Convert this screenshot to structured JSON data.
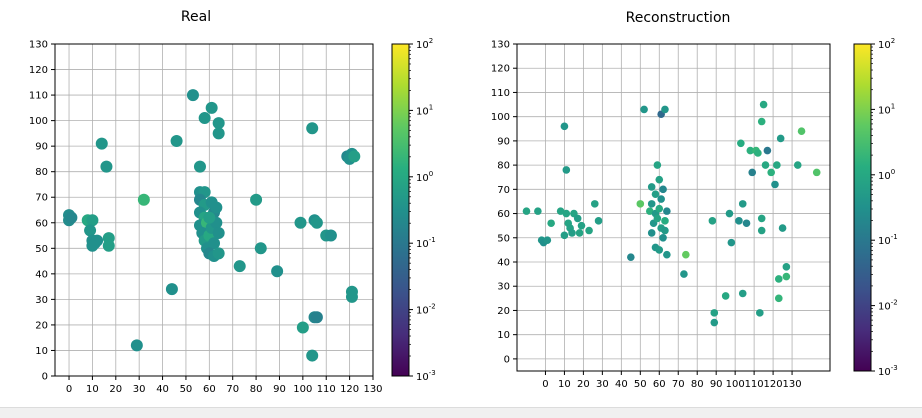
{
  "chart_data": [
    {
      "type": "scatter",
      "title": "Real",
      "xlim": [
        -6,
        130
      ],
      "ylim": [
        0,
        130
      ],
      "xticks": [
        "0",
        "10",
        "20",
        "30",
        "40",
        "50",
        "60",
        "70",
        "80",
        "90",
        "100",
        "110",
        "120",
        "130"
      ],
      "yticks": [
        "0",
        "10",
        "20",
        "30",
        "40",
        "50",
        "60",
        "70",
        "80",
        "90",
        "100",
        "110",
        "120",
        "130"
      ],
      "grid": true,
      "colorbar": {
        "scale": "log",
        "range": [
          0.001,
          100
        ],
        "ticks": [
          "10^-3",
          "10^-2",
          "10^-1",
          "10^0",
          "10^1",
          "10^2"
        ],
        "colormap": "viridis"
      },
      "points": [
        {
          "x": 0,
          "y": 63,
          "c": 0.25
        },
        {
          "x": 0,
          "y": 61,
          "c": 0.25
        },
        {
          "x": 1,
          "y": 62,
          "c": 0.2
        },
        {
          "x": 8,
          "y": 61,
          "c": 1
        },
        {
          "x": 10,
          "y": 61,
          "c": 0.6
        },
        {
          "x": 9,
          "y": 57,
          "c": 0.4
        },
        {
          "x": 10,
          "y": 53,
          "c": 0.3
        },
        {
          "x": 11,
          "y": 52,
          "c": 0.25
        },
        {
          "x": 12,
          "y": 53,
          "c": 0.3
        },
        {
          "x": 10,
          "y": 51,
          "c": 0.3
        },
        {
          "x": 14,
          "y": 91,
          "c": 0.4
        },
        {
          "x": 16,
          "y": 82,
          "c": 0.4
        },
        {
          "x": 17,
          "y": 54,
          "c": 0.6
        },
        {
          "x": 17,
          "y": 51,
          "c": 0.6
        },
        {
          "x": 29,
          "y": 12,
          "c": 0.3
        },
        {
          "x": 32,
          "y": 69,
          "c": 2
        },
        {
          "x": 44,
          "y": 34,
          "c": 0.3
        },
        {
          "x": 46,
          "y": 92,
          "c": 0.4
        },
        {
          "x": 53,
          "y": 110,
          "c": 0.3
        },
        {
          "x": 56,
          "y": 82,
          "c": 0.4
        },
        {
          "x": 58,
          "y": 101,
          "c": 0.4
        },
        {
          "x": 61,
          "y": 105,
          "c": 0.4
        },
        {
          "x": 64,
          "y": 99,
          "c": 0.4
        },
        {
          "x": 64,
          "y": 95,
          "c": 0.4
        },
        {
          "x": 56,
          "y": 72,
          "c": 0.3
        },
        {
          "x": 58,
          "y": 72,
          "c": 0.4
        },
        {
          "x": 56,
          "y": 69,
          "c": 0.2
        },
        {
          "x": 58,
          "y": 67,
          "c": 0.5
        },
        {
          "x": 56,
          "y": 64,
          "c": 0.3
        },
        {
          "x": 58,
          "y": 62,
          "c": 0.8
        },
        {
          "x": 56,
          "y": 59,
          "c": 0.3
        },
        {
          "x": 59,
          "y": 60,
          "c": 2
        },
        {
          "x": 57,
          "y": 56,
          "c": 0.3
        },
        {
          "x": 58,
          "y": 53,
          "c": 0.5
        },
        {
          "x": 59,
          "y": 50,
          "c": 0.3
        },
        {
          "x": 60,
          "y": 55,
          "c": 1
        },
        {
          "x": 61,
          "y": 68,
          "c": 0.3
        },
        {
          "x": 62,
          "y": 64,
          "c": 0.2
        },
        {
          "x": 63,
          "y": 66,
          "c": 0.3
        },
        {
          "x": 61,
          "y": 58,
          "c": 0.4
        },
        {
          "x": 62,
          "y": 52,
          "c": 0.3
        },
        {
          "x": 60,
          "y": 48,
          "c": 0.2
        },
        {
          "x": 62,
          "y": 47,
          "c": 0.3
        },
        {
          "x": 64,
          "y": 48,
          "c": 0.4
        },
        {
          "x": 63,
          "y": 60,
          "c": 0.3
        },
        {
          "x": 64,
          "y": 56,
          "c": 0.3
        },
        {
          "x": 60,
          "y": 62,
          "c": 0.6
        },
        {
          "x": 73,
          "y": 43,
          "c": 0.4
        },
        {
          "x": 80,
          "y": 69,
          "c": 0.5
        },
        {
          "x": 82,
          "y": 50,
          "c": 0.4
        },
        {
          "x": 89,
          "y": 41,
          "c": 0.3
        },
        {
          "x": 100,
          "y": 19,
          "c": 0.6
        },
        {
          "x": 99,
          "y": 60,
          "c": 0.4
        },
        {
          "x": 104,
          "y": 97,
          "c": 0.4
        },
        {
          "x": 104,
          "y": 8,
          "c": 0.4
        },
        {
          "x": 105,
          "y": 23,
          "c": 0.2
        },
        {
          "x": 106,
          "y": 23,
          "c": 0.15
        },
        {
          "x": 105,
          "y": 61,
          "c": 0.3
        },
        {
          "x": 106,
          "y": 60,
          "c": 0.4
        },
        {
          "x": 110,
          "y": 55,
          "c": 0.4
        },
        {
          "x": 112,
          "y": 55,
          "c": 0.3
        },
        {
          "x": 119,
          "y": 86,
          "c": 0.2
        },
        {
          "x": 121,
          "y": 87,
          "c": 0.3
        },
        {
          "x": 120,
          "y": 85,
          "c": 0.3
        },
        {
          "x": 122,
          "y": 86,
          "c": 0.6
        },
        {
          "x": 121,
          "y": 33,
          "c": 0.4
        },
        {
          "x": 121,
          "y": 31,
          "c": 0.4
        }
      ]
    },
    {
      "type": "scatter",
      "title": "Reconstruction",
      "xlim": [
        -15,
        150
      ],
      "ylim": [
        -5,
        130
      ],
      "xticks": [
        "0",
        "10",
        "20",
        "30",
        "40",
        "50",
        "60",
        "70",
        "80",
        "90",
        "100",
        "110",
        "120",
        "130"
      ],
      "yticks": [
        "0",
        "10",
        "20",
        "30",
        "40",
        "50",
        "60",
        "70",
        "80",
        "90",
        "100",
        "110",
        "120",
        "130"
      ],
      "grid": true,
      "colorbar": {
        "scale": "log",
        "range": [
          0.001,
          100
        ],
        "ticks": [
          "10^-3",
          "10^-2",
          "10^-1",
          "10^0",
          "10^1",
          "10^2"
        ],
        "colormap": "viridis"
      },
      "points": [
        {
          "x": -10,
          "y": 61,
          "c": 0.8
        },
        {
          "x": -4,
          "y": 61,
          "c": 0.7
        },
        {
          "x": -2,
          "y": 49,
          "c": 0.4
        },
        {
          "x": -1,
          "y": 48,
          "c": 0.3
        },
        {
          "x": 1,
          "y": 49,
          "c": 0.4
        },
        {
          "x": 3,
          "y": 56,
          "c": 1
        },
        {
          "x": 8,
          "y": 61,
          "c": 0.8
        },
        {
          "x": 10,
          "y": 96,
          "c": 0.4
        },
        {
          "x": 10,
          "y": 51,
          "c": 0.6
        },
        {
          "x": 11,
          "y": 60,
          "c": 0.8
        },
        {
          "x": 11,
          "y": 78,
          "c": 0.5
        },
        {
          "x": 12,
          "y": 56,
          "c": 0.8
        },
        {
          "x": 13,
          "y": 54,
          "c": 0.7
        },
        {
          "x": 14,
          "y": 52,
          "c": 0.6
        },
        {
          "x": 15,
          "y": 60,
          "c": 0.8
        },
        {
          "x": 17,
          "y": 58,
          "c": 0.6
        },
        {
          "x": 18,
          "y": 52,
          "c": 0.8
        },
        {
          "x": 19,
          "y": 55,
          "c": 0.7
        },
        {
          "x": 23,
          "y": 53,
          "c": 0.8
        },
        {
          "x": 26,
          "y": 64,
          "c": 0.7
        },
        {
          "x": 28,
          "y": 57,
          "c": 0.6
        },
        {
          "x": 45,
          "y": 42,
          "c": 0.2
        },
        {
          "x": 50,
          "y": 64,
          "c": 5
        },
        {
          "x": 52,
          "y": 103,
          "c": 0.4
        },
        {
          "x": 55,
          "y": 61,
          "c": 1.5
        },
        {
          "x": 56,
          "y": 71,
          "c": 0.5
        },
        {
          "x": 58,
          "y": 68,
          "c": 0.6
        },
        {
          "x": 56,
          "y": 64,
          "c": 0.4
        },
        {
          "x": 58,
          "y": 60,
          "c": 0.5
        },
        {
          "x": 57,
          "y": 56,
          "c": 0.4
        },
        {
          "x": 56,
          "y": 52,
          "c": 0.3
        },
        {
          "x": 59,
          "y": 58,
          "c": 0.8
        },
        {
          "x": 60,
          "y": 62,
          "c": 1
        },
        {
          "x": 60,
          "y": 74,
          "c": 0.7
        },
        {
          "x": 59,
          "y": 80,
          "c": 0.8
        },
        {
          "x": 61,
          "y": 66,
          "c": 0.3
        },
        {
          "x": 62,
          "y": 70,
          "c": 0.2
        },
        {
          "x": 61,
          "y": 54,
          "c": 0.6
        },
        {
          "x": 62,
          "y": 50,
          "c": 0.3
        },
        {
          "x": 58,
          "y": 46,
          "c": 0.4
        },
        {
          "x": 60,
          "y": 45,
          "c": 0.5
        },
        {
          "x": 63,
          "y": 57,
          "c": 1.2
        },
        {
          "x": 64,
          "y": 61,
          "c": 0.2
        },
        {
          "x": 63,
          "y": 53,
          "c": 0.5
        },
        {
          "x": 61,
          "y": 101,
          "c": 0.05
        },
        {
          "x": 63,
          "y": 103,
          "c": 0.4
        },
        {
          "x": 64,
          "y": 43,
          "c": 0.4
        },
        {
          "x": 73,
          "y": 35,
          "c": 0.4
        },
        {
          "x": 74,
          "y": 43,
          "c": 6
        },
        {
          "x": 88,
          "y": 57,
          "c": 0.7
        },
        {
          "x": 89,
          "y": 19,
          "c": 0.7
        },
        {
          "x": 89,
          "y": 15,
          "c": 0.5
        },
        {
          "x": 95,
          "y": 26,
          "c": 1
        },
        {
          "x": 97,
          "y": 60,
          "c": 0.5
        },
        {
          "x": 98,
          "y": 48,
          "c": 0.4
        },
        {
          "x": 102,
          "y": 57,
          "c": 0.3
        },
        {
          "x": 103,
          "y": 89,
          "c": 1.2
        },
        {
          "x": 104,
          "y": 27,
          "c": 0.6
        },
        {
          "x": 104,
          "y": 64,
          "c": 0.5
        },
        {
          "x": 106,
          "y": 56,
          "c": 0.2
        },
        {
          "x": 108,
          "y": 86,
          "c": 1.5
        },
        {
          "x": 109,
          "y": 77,
          "c": 0.15
        },
        {
          "x": 111,
          "y": 86,
          "c": 2
        },
        {
          "x": 112,
          "y": 85,
          "c": 1.5
        },
        {
          "x": 113,
          "y": 19,
          "c": 0.6
        },
        {
          "x": 114,
          "y": 58,
          "c": 0.8
        },
        {
          "x": 114,
          "y": 53,
          "c": 0.7
        },
        {
          "x": 114,
          "y": 98,
          "c": 1.5
        },
        {
          "x": 115,
          "y": 105,
          "c": 1
        },
        {
          "x": 116,
          "y": 80,
          "c": 1
        },
        {
          "x": 117,
          "y": 86,
          "c": 0.1
        },
        {
          "x": 119,
          "y": 77,
          "c": 1.5
        },
        {
          "x": 121,
          "y": 72,
          "c": 0.3
        },
        {
          "x": 122,
          "y": 80,
          "c": 1
        },
        {
          "x": 123,
          "y": 33,
          "c": 1.5
        },
        {
          "x": 123,
          "y": 25,
          "c": 1.8
        },
        {
          "x": 124,
          "y": 91,
          "c": 0.5
        },
        {
          "x": 125,
          "y": 54,
          "c": 0.5
        },
        {
          "x": 127,
          "y": 38,
          "c": 0.7
        },
        {
          "x": 127,
          "y": 34,
          "c": 2
        },
        {
          "x": 133,
          "y": 80,
          "c": 0.8
        },
        {
          "x": 135,
          "y": 94,
          "c": 4
        },
        {
          "x": 143,
          "y": 77,
          "c": 4
        }
      ]
    }
  ]
}
